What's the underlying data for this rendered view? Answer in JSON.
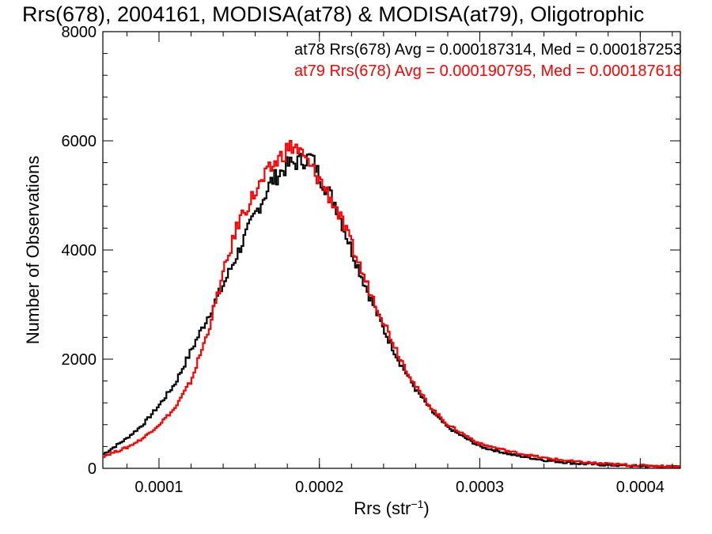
{
  "chart_data": {
    "type": "line",
    "step": true,
    "title": "Rrs(678), 2004161, MODISA(at78) & MODISA(at79), Oligotrophic",
    "xlabel": {
      "base": "Rrs (str",
      "sup": "−1",
      "close": ")"
    },
    "ylabel": "Number of Observations",
    "xlim": [
      6.5e-05,
      0.000425
    ],
    "ylim": [
      0,
      8000
    ],
    "xticks": [
      {
        "v": 0.0001,
        "label": "0.0001"
      },
      {
        "v": 0.0002,
        "label": "0.0002"
      },
      {
        "v": 0.0003,
        "label": "0.0003"
      },
      {
        "v": 0.0004,
        "label": "0.0004"
      }
    ],
    "yticks": [
      {
        "v": 0,
        "label": "0"
      },
      {
        "v": 2000,
        "label": "2000"
      },
      {
        "v": 4000,
        "label": "4000"
      },
      {
        "v": 6000,
        "label": "6000"
      },
      {
        "v": 8000,
        "label": "8000"
      }
    ],
    "grid": false,
    "series": [
      {
        "stat_label": "at78 Rrs(678) Avg = 0.000187314, Med = 0.000187253",
        "color": "#000000",
        "x": [
          6.5e-05,
          8e-05,
          9e-05,
          0.0001,
          0.00011,
          0.00012,
          0.00013,
          0.00014,
          0.00015,
          0.00016,
          0.00017,
          0.00018,
          0.00019,
          0.000195,
          0.0002,
          0.00021,
          0.00022,
          0.00023,
          0.00024,
          0.00025,
          0.00026,
          0.00027,
          0.00028,
          0.0003,
          0.00032,
          0.00034,
          0.00036,
          0.00038,
          0.0004,
          0.000425
        ],
        "y": [
          250,
          550,
          800,
          1150,
          1550,
          2150,
          2750,
          3350,
          4000,
          4650,
          5250,
          5550,
          5650,
          5700,
          5350,
          4850,
          4000,
          3250,
          2550,
          1950,
          1450,
          1050,
          750,
          400,
          250,
          150,
          90,
          60,
          40,
          25
        ]
      },
      {
        "stat_label": "at79 Rrs(678) Avg = 0.000190795, Med = 0.000187618",
        "color": "#ff0000",
        "x": [
          6.5e-05,
          8e-05,
          9e-05,
          0.0001,
          0.00011,
          0.00012,
          0.00013,
          0.00014,
          0.00015,
          0.00016,
          0.00017,
          0.00018,
          0.000185,
          0.00019,
          0.0002,
          0.00021,
          0.00022,
          0.00023,
          0.00024,
          0.00025,
          0.00026,
          0.00027,
          0.00028,
          0.0003,
          0.00032,
          0.00034,
          0.00036,
          0.00038,
          0.0004,
          0.000425
        ],
        "y": [
          220,
          380,
          550,
          800,
          1100,
          1600,
          2450,
          3550,
          4550,
          5050,
          5500,
          5850,
          5900,
          5700,
          5300,
          4800,
          4100,
          3350,
          2700,
          2050,
          1500,
          1100,
          800,
          450,
          300,
          190,
          120,
          80,
          50,
          30
        ]
      }
    ]
  }
}
